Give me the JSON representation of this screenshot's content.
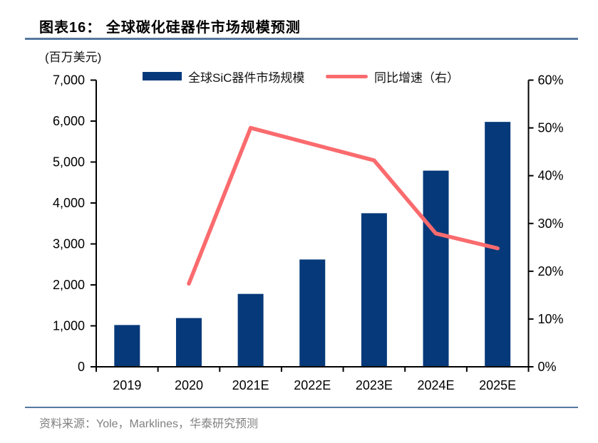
{
  "header": {
    "title": "图表16：  全球碳化硅器件市场规模预测"
  },
  "chart_data": {
    "type": "bar",
    "subtype": "bar+line combo",
    "unit_label": "(百万美元)",
    "categories": [
      "2019",
      "2020",
      "2021E",
      "2022E",
      "2023E",
      "2024E",
      "2025E"
    ],
    "series": [
      {
        "name": "全球SiC器件市场规模",
        "type": "bar",
        "axis": "left",
        "values": [
          1020,
          1190,
          1780,
          2620,
          3750,
          4790,
          5980
        ]
      },
      {
        "name": "同比增速（右）",
        "type": "line",
        "axis": "right",
        "values": [
          null,
          17.4,
          50.0,
          46.6,
          43.2,
          27.9,
          24.8
        ]
      }
    ],
    "left_axis": {
      "min": 0,
      "max": 7000,
      "tick_step": 1000,
      "tick_labels": [
        "0",
        "1,000",
        "2,000",
        "3,000",
        "4,000",
        "5,000",
        "6,000",
        "7,000"
      ]
    },
    "right_axis": {
      "min": 0,
      "max": 60,
      "tick_step": 10,
      "tick_labels": [
        "0%",
        "10%",
        "20%",
        "30%",
        "40%",
        "50%",
        "60%"
      ]
    },
    "legend_position": "top",
    "grid": "off"
  },
  "legend": {
    "bar_label": "全球SiC器件市场规模",
    "line_label": "同比增速（右）"
  },
  "footer": {
    "source": "资料来源：Yole，Marklines，华泰研究预测"
  },
  "colors": {
    "bar": "#05397a",
    "line": "#fa6b6e",
    "rule": "#56799f",
    "axis": "#000000",
    "source_text": "#808080"
  }
}
